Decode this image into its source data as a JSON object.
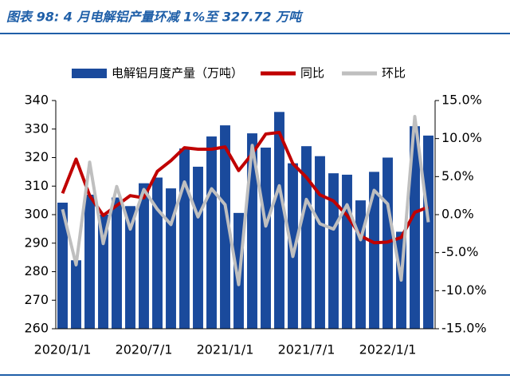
{
  "chart_data": {
    "type": "bar_line",
    "title": "图表 98:  4 月电解铝产量环减 1%至 327.72 万吨",
    "categories": [
      "2020/1/1",
      null,
      null,
      null,
      null,
      null,
      "2020/7/1",
      null,
      null,
      null,
      null,
      null,
      "2021/1/1",
      null,
      null,
      null,
      null,
      null,
      "2021/7/1",
      null,
      null,
      null,
      null,
      null,
      "2022/1/1",
      null,
      null,
      null
    ],
    "series": [
      {
        "name": "电解铝月度产量（万吨）",
        "color": "#1a4a9c",
        "type": "bar",
        "values": [
          304.2,
          284,
          307,
          300,
          306,
          303,
          311,
          313,
          309.2,
          323.2,
          316.8,
          327.4,
          331.3,
          300.6,
          328.5,
          323.5,
          336,
          318,
          324,
          320.5,
          314.5,
          314,
          305,
          315,
          320,
          294,
          331,
          327.72
        ]
      },
      {
        "name": "同比",
        "color": "#c00000",
        "type": "line",
        "axis": "y2",
        "values": [
          2.8,
          7.3,
          2.5,
          -0.1,
          1.2,
          2.5,
          2.2,
          5.7,
          7.1,
          8.8,
          8.6,
          8.6,
          8.9,
          5.8,
          8.0,
          10.6,
          10.8,
          6.7,
          4.9,
          2.6,
          1.8,
          -0.1,
          -2.8,
          -3.7,
          -3.6,
          -3.0,
          0.3,
          1.0
        ]
      },
      {
        "name": "环比",
        "color": "#bfbfbf",
        "type": "line",
        "axis": "y2",
        "values": [
          0.7,
          -6.6,
          6.9,
          -3.8,
          3.7,
          -1.9,
          3.3,
          0.7,
          -1.3,
          4.3,
          -0.3,
          3.4,
          1.3,
          -9.2,
          9.1,
          -1.5,
          3.8,
          -5.5,
          2.0,
          -1.2,
          -1.9,
          1.3,
          -3.3,
          3.2,
          1.4,
          -8.6,
          12.9,
          -1.0
        ]
      }
    ],
    "ylim": [
      260,
      340
    ],
    "yticks": [
      260,
      270,
      280,
      290,
      300,
      310,
      320,
      330,
      340
    ],
    "y2lim": [
      -15,
      15
    ],
    "y2ticks": [
      {
        "value": -15,
        "label": "-15.0%"
      },
      {
        "value": -10,
        "label": "-10.0%"
      },
      {
        "value": -5,
        "label": "-5.0%"
      },
      {
        "value": 0,
        "label": "0.0%"
      },
      {
        "value": 5,
        "label": "5.0%"
      },
      {
        "value": 10,
        "label": "10.0%"
      },
      {
        "value": 15,
        "label": "15.0%"
      }
    ]
  }
}
